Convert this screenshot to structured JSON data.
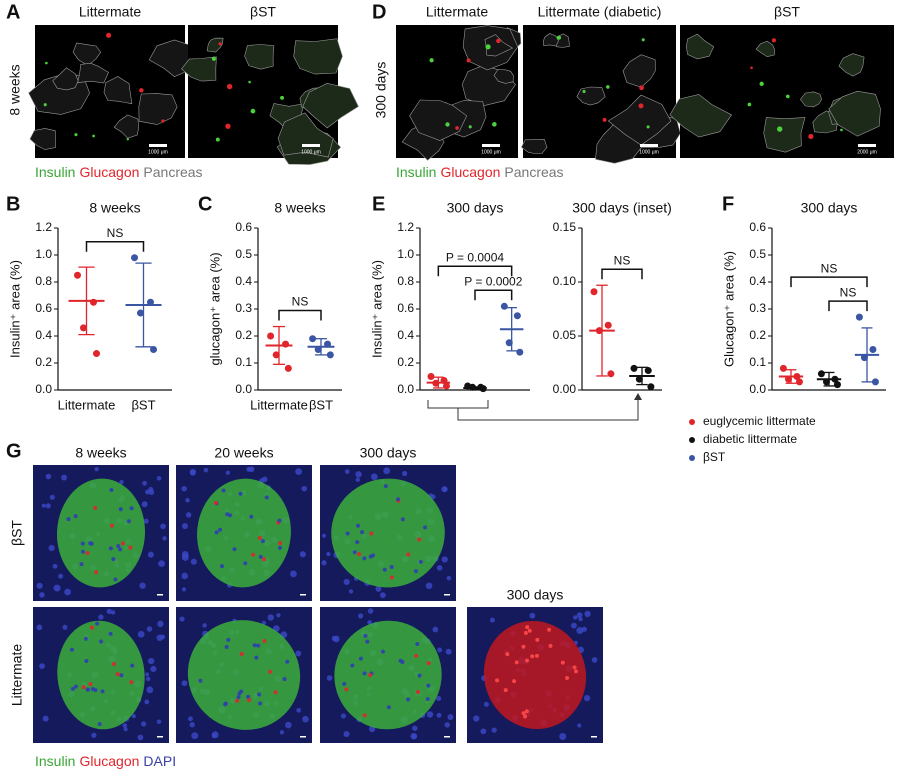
{
  "panel_A": {
    "letter": "A",
    "row_label": "8 weeks",
    "columns": [
      "Littermate",
      "βST"
    ],
    "scale_bars": [
      "1000 μm",
      "1000 μm"
    ]
  },
  "panel_D": {
    "letter": "D",
    "row_label": "300 days",
    "columns": [
      "Littermate",
      "Littermate (diabetic)",
      "βST"
    ],
    "scale_bars": [
      "1000 μm",
      "1000 μm",
      "2000 μm"
    ]
  },
  "pancreas_stains": [
    {
      "name": "Insulin",
      "color": "#3aa635"
    },
    {
      "name": "Glucagon",
      "color": "#e0262b"
    },
    {
      "name": "Pancreas",
      "color": "#777777"
    }
  ],
  "panel_G": {
    "letter": "G",
    "columns": [
      "8 weeks",
      "20 weeks",
      "300 days"
    ],
    "extra_column": "300 days",
    "rows": [
      "βST",
      "Littermate"
    ],
    "stains": [
      {
        "name": "Insulin",
        "color": "#3aa635"
      },
      {
        "name": "Glucagon",
        "color": "#e0262b"
      },
      {
        "name": "DAPI",
        "color": "#3a3fa8"
      }
    ]
  },
  "chart_data": [
    {
      "type": "dotplot",
      "letter": "B",
      "title": "8 weeks",
      "ylabel": "Insulin⁺ area (%)",
      "ylim": [
        0,
        1.2
      ],
      "yticks": [
        {
          "value": 0,
          "label": "0.0"
        },
        0.2,
        0.4,
        0.6,
        0.8,
        {
          "value": 1,
          "label": "1.0"
        },
        1.2
      ],
      "groups": [
        {
          "name": "Littermate",
          "color": "#e0262b",
          "values": [
            0.85,
            0.65,
            0.46,
            0.27
          ],
          "mean": 0.66,
          "sd": 0.25
        },
        {
          "name": "βST",
          "color": "#3a55a4",
          "values": [
            0.98,
            0.65,
            0.57,
            0.3
          ],
          "mean": 0.63,
          "sd": 0.31
        }
      ],
      "annotations": [
        {
          "text": "NS",
          "from": 0,
          "to": 1
        }
      ]
    },
    {
      "type": "dotplot",
      "letter": "C",
      "title": "8 weeks",
      "ylabel": "glucagon⁺ area (%)",
      "ylim": [
        0,
        0.6
      ],
      "yticks": [
        {
          "value": 0,
          "label": "0.0"
        },
        0.1,
        0.2,
        0.3,
        0.4,
        0.5,
        0.6
      ],
      "groups": [
        {
          "name": "Littermate",
          "color": "#e0262b",
          "values": [
            0.2,
            0.17,
            0.13,
            0.08
          ],
          "mean": 0.165,
          "sd": 0.07
        },
        {
          "name": "βST",
          "color": "#3a55a4",
          "values": [
            0.19,
            0.17,
            0.15,
            0.13
          ],
          "mean": 0.16,
          "sd": 0.03
        }
      ],
      "annotations": [
        {
          "text": "NS",
          "from": 0,
          "to": 1
        }
      ]
    },
    {
      "type": "dotplot",
      "letter": "E",
      "title": "300 days",
      "ylabel": "Insulin⁺ area (%)",
      "ylim": [
        0,
        1.2
      ],
      "yticks": [
        {
          "value": 0,
          "label": "0.0"
        },
        0.2,
        0.4,
        0.6,
        0.8,
        {
          "value": 1,
          "label": "1.0"
        },
        1.2
      ],
      "groups": [
        {
          "name": "euglycemic littermate",
          "color": "#e0262b",
          "values": [
            0.1,
            0.07,
            0.05,
            0.03
          ],
          "mean": 0.055,
          "sd": 0.04
        },
        {
          "name": "diabetic littermate",
          "color": "#111111",
          "values": [
            0.03,
            0.02,
            0.02,
            0.01
          ],
          "mean": 0.015,
          "sd": 0.008
        },
        {
          "name": "βST",
          "color": "#3a55a4",
          "values": [
            0.62,
            0.55,
            0.35,
            0.28
          ],
          "mean": 0.45,
          "sd": 0.16
        }
      ],
      "annotations": [
        {
          "text": "P = 0.0002",
          "from": 1,
          "to": 2
        },
        {
          "text": "P = 0.0004",
          "from": 0,
          "to": 2
        }
      ]
    },
    {
      "type": "dotplot",
      "title": "300 days (inset)",
      "ylim": [
        0,
        0.15
      ],
      "yticks": [
        {
          "value": 0,
          "label": "0.00"
        },
        0.05,
        {
          "value": 0.1,
          "label": "0.10"
        },
        0.15
      ],
      "groups": [
        {
          "color": "#e0262b",
          "values": [
            0.091,
            0.06,
            0.055,
            0.015
          ],
          "mean": 0.055,
          "sd": 0.042
        },
        {
          "color": "#111111",
          "values": [
            0.02,
            0.018,
            0.01,
            0.003
          ],
          "mean": 0.013,
          "sd": 0.008
        }
      ],
      "annotations": [
        {
          "text": "NS",
          "from": 0,
          "to": 1
        }
      ]
    },
    {
      "type": "dotplot",
      "letter": "F",
      "title": "300 days",
      "ylabel": "Glucagon⁺ area (%)",
      "ylim": [
        0,
        0.6
      ],
      "yticks": [
        {
          "value": 0,
          "label": "0.0"
        },
        0.1,
        0.2,
        0.3,
        0.4,
        0.5,
        0.6
      ],
      "groups": [
        {
          "color": "#e0262b",
          "values": [
            0.08,
            0.05,
            0.04,
            0.03
          ],
          "mean": 0.05,
          "sd": 0.025
        },
        {
          "color": "#111111",
          "values": [
            0.06,
            0.04,
            0.03,
            0.02
          ],
          "mean": 0.04,
          "sd": 0.025
        },
        {
          "color": "#3a55a4",
          "values": [
            0.27,
            0.15,
            0.12,
            0.03
          ],
          "mean": 0.13,
          "sd": 0.1
        }
      ],
      "annotations": [
        {
          "text": "NS",
          "from": 1,
          "to": 2
        },
        {
          "text": "NS",
          "from": 0,
          "to": 2
        }
      ]
    }
  ]
}
